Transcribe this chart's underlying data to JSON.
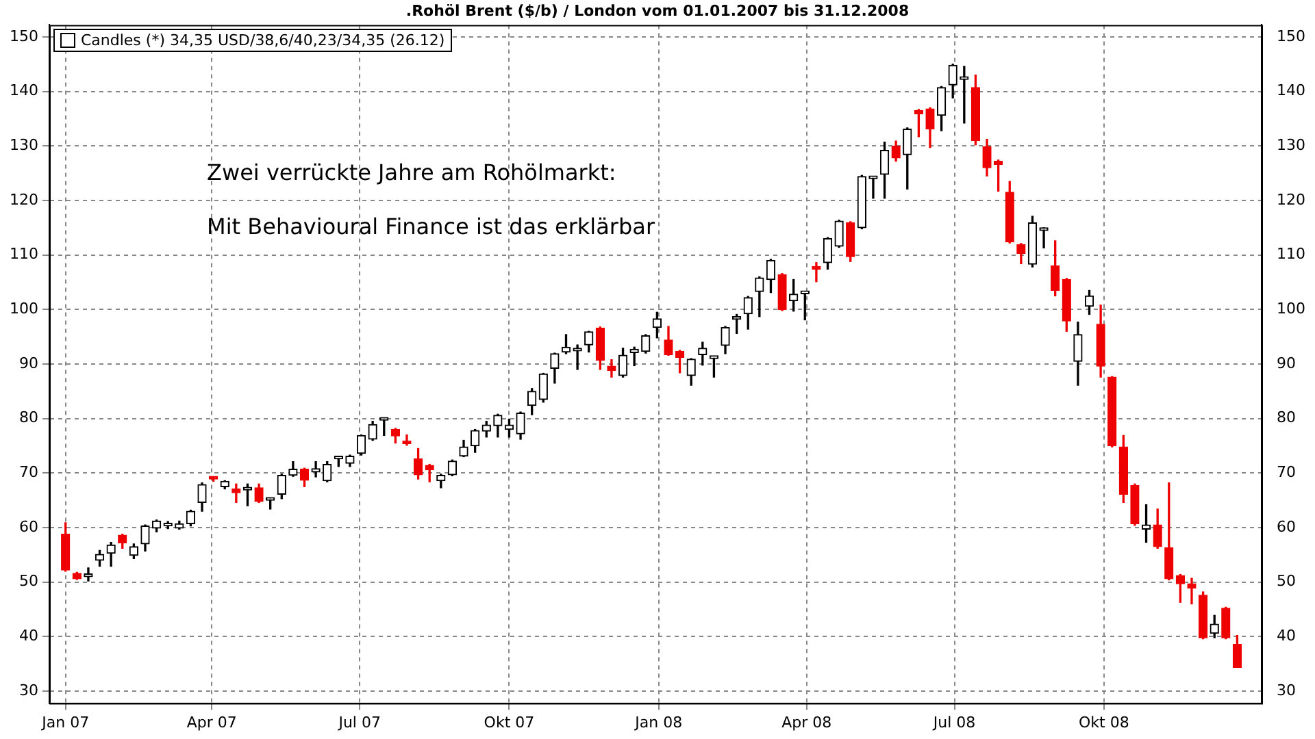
{
  "chart_data": {
    "type": "candlestick",
    "title": ".Rohöl Brent ($/b) / London vom 01.01.2007 bis 31.12.2008",
    "annotations": [
      "Zwei verrückte Jahre am Rohölmarkt:",
      "Mit Behavioural Finance ist das erklärbar"
    ],
    "x": [
      "2007-01-01",
      "2007-01-08",
      "2007-01-15",
      "2007-01-22",
      "2007-01-29",
      "2007-02-05",
      "2007-02-12",
      "2007-02-19",
      "2007-02-26",
      "2007-03-05",
      "2007-03-12",
      "2007-03-19",
      "2007-03-26",
      "2007-04-02",
      "2007-04-09",
      "2007-04-16",
      "2007-04-23",
      "2007-04-30",
      "2007-05-07",
      "2007-05-14",
      "2007-05-21",
      "2007-05-28",
      "2007-06-04",
      "2007-06-11",
      "2007-06-18",
      "2007-06-25",
      "2007-07-02",
      "2007-07-09",
      "2007-07-16",
      "2007-07-23",
      "2007-07-30",
      "2007-08-06",
      "2007-08-13",
      "2007-08-20",
      "2007-08-27",
      "2007-09-03",
      "2007-09-10",
      "2007-09-17",
      "2007-09-24",
      "2007-10-01",
      "2007-10-08",
      "2007-10-15",
      "2007-10-22",
      "2007-10-29",
      "2007-11-05",
      "2007-11-12",
      "2007-11-19",
      "2007-11-26",
      "2007-12-03",
      "2007-12-10",
      "2007-12-17",
      "2007-12-24",
      "2007-12-31",
      "2008-01-07",
      "2008-01-14",
      "2008-01-21",
      "2008-01-28",
      "2008-02-04",
      "2008-02-11",
      "2008-02-18",
      "2008-02-25",
      "2008-03-03",
      "2008-03-10",
      "2008-03-17",
      "2008-03-24",
      "2008-03-31",
      "2008-04-07",
      "2008-04-14",
      "2008-04-21",
      "2008-04-28",
      "2008-05-05",
      "2008-05-12",
      "2008-05-19",
      "2008-05-26",
      "2008-06-02",
      "2008-06-09",
      "2008-06-16",
      "2008-06-23",
      "2008-06-30",
      "2008-07-07",
      "2008-07-14",
      "2008-07-21",
      "2008-07-28",
      "2008-08-04",
      "2008-08-11",
      "2008-08-18",
      "2008-08-25",
      "2008-09-01",
      "2008-09-08",
      "2008-09-15",
      "2008-09-22",
      "2008-09-29",
      "2008-10-06",
      "2008-10-13",
      "2008-10-20",
      "2008-10-27",
      "2008-11-03",
      "2008-11-10",
      "2008-11-17",
      "2008-11-24",
      "2008-12-01",
      "2008-12-08",
      "2008-12-15",
      "2008-12-22"
    ],
    "series": [
      {
        "name": "Candles (*) 34,35 USD/38,6/40,23/34,35 (26.12)",
        "colors": [
          "#ee0000",
          "#ee0000",
          "#000000",
          "#000000",
          "#000000",
          "#ee0000",
          "#000000",
          "#000000",
          "#000000",
          "#000000",
          "#000000",
          "#000000",
          "#000000",
          "#ee0000",
          "#000000",
          "#ee0000",
          "#000000",
          "#ee0000",
          "#000000",
          "#000000",
          "#000000",
          "#ee0000",
          "#000000",
          "#000000",
          "#000000",
          "#000000",
          "#000000",
          "#000000",
          "#000000",
          "#ee0000",
          "#ee0000",
          "#ee0000",
          "#ee0000",
          "#000000",
          "#000000",
          "#000000",
          "#000000",
          "#000000",
          "#000000",
          "#000000",
          "#000000",
          "#000000",
          "#000000",
          "#000000",
          "#000000",
          "#000000",
          "#000000",
          "#ee0000",
          "#ee0000",
          "#000000",
          "#000000",
          "#000000",
          "#000000",
          "#ee0000",
          "#ee0000",
          "#000000",
          "#000000",
          "#000000",
          "#000000",
          "#000000",
          "#000000",
          "#000000",
          "#000000",
          "#ee0000",
          "#000000",
          "#000000",
          "#ee0000",
          "#000000",
          "#000000",
          "#ee0000",
          "#000000",
          "#000000",
          "#000000",
          "#ee0000",
          "#000000",
          "#ee0000",
          "#ee0000",
          "#000000",
          "#000000",
          "#000000",
          "#ee0000",
          "#ee0000",
          "#ee0000",
          "#ee0000",
          "#ee0000",
          "#000000",
          "#000000",
          "#ee0000",
          "#ee0000",
          "#000000",
          "#000000",
          "#ee0000",
          "#ee0000",
          "#ee0000",
          "#ee0000",
          "#000000",
          "#ee0000",
          "#ee0000",
          "#ee0000",
          "#ee0000",
          "#ee0000",
          "#000000",
          "#ee0000",
          "#ee0000"
        ],
        "ohlc": [
          [
            58.8,
            60.9,
            52.0,
            52.2
          ],
          [
            51.6,
            51.8,
            50.5,
            50.6
          ],
          [
            51.0,
            52.6,
            50.2,
            51.1
          ],
          [
            54.0,
            55.8,
            52.9,
            55.1
          ],
          [
            55.3,
            57.3,
            52.9,
            56.8
          ],
          [
            58.6,
            58.8,
            56.2,
            57.2
          ],
          [
            54.9,
            57.0,
            54.3,
            56.5
          ],
          [
            57.0,
            60.5,
            55.7,
            60.3
          ],
          [
            59.9,
            61.4,
            59.2,
            61.2
          ],
          [
            60.3,
            61.1,
            59.8,
            60.4
          ],
          [
            59.9,
            61.2,
            59.7,
            60.7
          ],
          [
            60.7,
            63.2,
            60.3,
            63.0
          ],
          [
            64.6,
            68.2,
            63.0,
            67.9
          ],
          [
            69.0,
            69.3,
            68.5,
            68.9
          ],
          [
            67.5,
            68.6,
            67.1,
            68.5
          ],
          [
            67.1,
            68.0,
            64.6,
            66.4
          ],
          [
            66.9,
            68.0,
            64.0,
            67.0
          ],
          [
            67.3,
            68.0,
            64.6,
            64.8
          ],
          [
            65.0,
            65.4,
            63.4,
            65.2
          ],
          [
            66.1,
            69.8,
            65.3,
            69.6
          ],
          [
            69.6,
            72.1,
            69.4,
            70.7
          ],
          [
            70.7,
            70.9,
            67.5,
            68.7
          ],
          [
            70.2,
            72.1,
            69.3,
            70.8
          ],
          [
            68.6,
            72.1,
            68.4,
            71.6
          ],
          [
            72.6,
            72.7,
            71.2,
            72.7
          ],
          [
            71.8,
            73.3,
            71.2,
            73.1
          ],
          [
            73.6,
            77.0,
            73.3,
            76.9
          ],
          [
            76.2,
            79.5,
            76.0,
            78.9
          ],
          [
            79.7,
            80.0,
            76.9,
            79.8
          ],
          [
            78.0,
            78.2,
            75.5,
            76.8
          ],
          [
            75.9,
            77.0,
            75.1,
            75.4
          ],
          [
            72.6,
            74.5,
            68.9,
            69.7
          ],
          [
            71.4,
            71.6,
            68.4,
            70.6
          ],
          [
            68.6,
            69.8,
            67.3,
            69.6
          ],
          [
            69.7,
            72.4,
            69.5,
            72.2
          ],
          [
            73.1,
            76.0,
            73.0,
            74.8
          ],
          [
            75.0,
            78.0,
            73.8,
            77.8
          ],
          [
            77.7,
            79.5,
            76.6,
            78.8
          ],
          [
            78.7,
            80.8,
            76.6,
            80.6
          ],
          [
            78.0,
            79.9,
            76.6,
            78.8
          ],
          [
            77.2,
            81.2,
            76.2,
            81.0
          ],
          [
            82.4,
            85.5,
            80.7,
            85.0
          ],
          [
            83.5,
            88.3,
            83.0,
            88.2
          ],
          [
            89.2,
            92.0,
            86.5,
            91.9
          ],
          [
            92.2,
            95.4,
            91.9,
            93.1
          ],
          [
            92.4,
            93.5,
            89.0,
            92.5
          ],
          [
            93.5,
            96.0,
            92.2,
            95.9
          ],
          [
            96.6,
            96.8,
            89.0,
            90.7
          ],
          [
            89.6,
            90.8,
            87.6,
            88.8
          ],
          [
            87.9,
            92.9,
            87.6,
            91.6
          ],
          [
            92.1,
            93.1,
            89.7,
            92.7
          ],
          [
            92.3,
            95.4,
            92.0,
            95.2
          ],
          [
            96.7,
            99.5,
            94.8,
            98.3
          ],
          [
            94.4,
            96.9,
            91.6,
            91.7
          ],
          [
            92.3,
            92.5,
            88.4,
            91.2
          ],
          [
            87.9,
            91.0,
            86.1,
            90.9
          ],
          [
            91.7,
            94.0,
            89.8,
            92.9
          ],
          [
            91.0,
            91.2,
            87.6,
            91.1
          ],
          [
            93.4,
            96.9,
            91.9,
            96.7
          ],
          [
            98.2,
            99.1,
            95.6,
            98.3
          ],
          [
            99.2,
            102.4,
            96.4,
            102.2
          ],
          [
            103.3,
            106.0,
            98.7,
            105.8
          ],
          [
            105.5,
            109.2,
            103.1,
            109.0
          ],
          [
            106.4,
            106.6,
            99.8,
            100.0
          ],
          [
            101.6,
            105.5,
            99.7,
            102.8
          ],
          [
            102.9,
            103.3,
            98.1,
            103.1
          ],
          [
            107.8,
            108.6,
            105.1,
            107.4
          ],
          [
            108.6,
            113.2,
            107.4,
            113.0
          ],
          [
            111.6,
            116.4,
            111.4,
            116.2
          ],
          [
            115.9,
            116.1,
            108.8,
            109.7
          ],
          [
            115.0,
            124.6,
            114.8,
            124.4
          ],
          [
            124.0,
            124.3,
            120.4,
            124.1
          ],
          [
            124.8,
            130.7,
            120.4,
            129.2
          ],
          [
            130.0,
            130.9,
            127.2,
            127.8
          ],
          [
            128.4,
            133.3,
            122.1,
            133.1
          ],
          [
            136.5,
            136.7,
            131.7,
            135.9
          ],
          [
            136.8,
            137.0,
            129.7,
            133.1
          ],
          [
            135.6,
            140.9,
            132.8,
            140.7
          ],
          [
            141.2,
            145.0,
            138.8,
            144.8
          ],
          [
            142.2,
            144.6,
            134.2,
            142.3
          ],
          [
            140.7,
            143.0,
            130.2,
            131.0
          ],
          [
            129.9,
            131.2,
            124.5,
            126.0
          ],
          [
            127.2,
            127.4,
            121.7,
            126.6
          ],
          [
            121.5,
            123.5,
            112.2,
            112.4
          ],
          [
            111.9,
            112.1,
            108.4,
            110.3
          ],
          [
            108.3,
            117.1,
            107.8,
            115.9
          ],
          [
            114.5,
            115.0,
            111.3,
            114.6
          ],
          [
            108.0,
            112.6,
            102.5,
            103.5
          ],
          [
            105.5,
            105.7,
            96.0,
            97.9
          ],
          [
            90.5,
            97.7,
            86.1,
            95.4
          ],
          [
            100.6,
            103.5,
            99.1,
            102.5
          ],
          [
            97.3,
            100.8,
            87.6,
            89.6
          ],
          [
            87.6,
            87.7,
            74.8,
            75.0
          ],
          [
            74.8,
            76.9,
            64.6,
            66.1
          ],
          [
            67.7,
            68.0,
            60.4,
            60.7
          ],
          [
            59.7,
            64.2,
            57.3,
            60.5
          ],
          [
            60.5,
            63.4,
            56.2,
            56.5
          ],
          [
            56.3,
            68.2,
            50.4,
            50.6
          ],
          [
            51.2,
            51.4,
            46.3,
            49.7
          ],
          [
            49.7,
            50.7,
            46.0,
            48.9
          ],
          [
            47.6,
            48.2,
            39.6,
            39.8
          ],
          [
            40.6,
            43.9,
            39.8,
            42.3
          ],
          [
            45.2,
            45.4,
            39.6,
            39.8
          ],
          [
            38.6,
            40.23,
            34.35,
            34.35
          ]
        ]
      }
    ],
    "xlim": [
      "2006-12-22",
      "2009-01-06"
    ],
    "xticks": [
      {
        "value": "2007-01-01",
        "label": "Jan 07"
      },
      {
        "value": "2007-04-01",
        "label": "Apr 07"
      },
      {
        "value": "2007-07-01",
        "label": "Jul 07"
      },
      {
        "value": "2007-10-01",
        "label": "Okt 07"
      },
      {
        "value": "2008-01-01",
        "label": "Jan 08"
      },
      {
        "value": "2008-04-01",
        "label": "Apr 08"
      },
      {
        "value": "2008-07-01",
        "label": "Jul 08"
      },
      {
        "value": "2008-10-01",
        "label": "Okt 08"
      }
    ],
    "ylim": [
      27.8,
      152.2
    ],
    "yticks": [
      30,
      40,
      50,
      60,
      70,
      80,
      90,
      100,
      110,
      120,
      130,
      140,
      150
    ],
    "y2lim": [
      27.8,
      152.2
    ],
    "y2ticks": [
      30,
      40,
      50,
      60,
      70,
      80,
      90,
      100,
      110,
      120,
      130,
      140,
      150
    ],
    "grid": true,
    "legend": "top left"
  }
}
